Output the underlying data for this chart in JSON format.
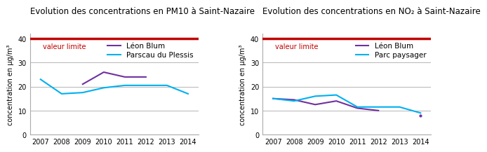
{
  "years": [
    2007,
    2008,
    2009,
    2010,
    2011,
    2012,
    2013,
    2014
  ],
  "pm10_title": "Evolution des concentrations en PM10 à Saint-Nazaire",
  "pm10_leon_blum_years": [
    2009,
    2010,
    2011,
    2012
  ],
  "pm10_leon_blum_vals": [
    21,
    26,
    24,
    24
  ],
  "pm10_parscau": [
    23,
    17,
    17.5,
    19.5,
    20.5,
    20.5,
    20.5,
    17
  ],
  "no2_title": "Evolution des concentrations en NO₂ à Saint-Nazaire",
  "no2_leon_blum_years": [
    2007,
    2008,
    2009,
    2010,
    2011,
    2012
  ],
  "no2_leon_blum_vals": [
    15,
    14.5,
    12.5,
    14,
    11,
    10
  ],
  "no2_leon_blum_years2": [
    2014
  ],
  "no2_leon_blum_vals2": [
    8
  ],
  "no2_parc_paysager": [
    15,
    14,
    16,
    16.5,
    11.5,
    11.5,
    11.5,
    9
  ],
  "valeur_limite": 40,
  "ylim": [
    0,
    42
  ],
  "yticks": [
    0,
    10,
    20,
    30,
    40
  ],
  "color_leon_blum": "#7030A0",
  "color_parscau": "#00B0F0",
  "color_parc_paysager": "#00B0F0",
  "color_valeur_limite": "#C00000",
  "color_valeur_limite_text": "#C00000",
  "ylabel": "concentration en μg/m³",
  "background_color": "#ffffff",
  "grid_color": "#aaaaaa",
  "title_fontsize": 8.5,
  "legend_fontsize": 7.5,
  "axis_fontsize": 7
}
